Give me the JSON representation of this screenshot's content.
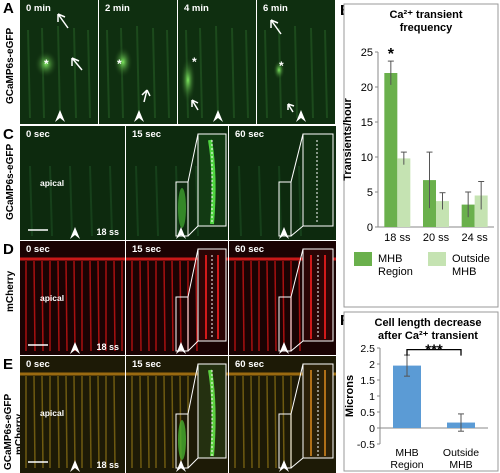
{
  "panels": {
    "A": {
      "label": "A",
      "row_label": "GCaMP6s-eGFP",
      "frames": [
        "0 min",
        "2 min",
        "4 min",
        "6 min"
      ]
    },
    "C": {
      "label": "C",
      "row_label": "GCaMP6s-eGFP",
      "frames": [
        "0 sec",
        "15 sec",
        "60 sec"
      ],
      "apical": "apical",
      "stage": "18 ss"
    },
    "D": {
      "label": "D",
      "row_label": "mCherry",
      "frames": [
        "0 sec",
        "15 sec",
        "60 sec"
      ],
      "apical": "apical",
      "stage": "18 ss"
    },
    "E": {
      "label": "E",
      "row_label_1": "GCaMP6s-eGFP",
      "row_label_2": "mCherry",
      "frames": [
        "0 sec",
        "15 sec",
        "60 sec"
      ],
      "apical": "apical",
      "stage": "18 ss"
    },
    "B": {
      "label": "B"
    },
    "F": {
      "label": "F"
    }
  },
  "chart_data": [
    {
      "type": "bar",
      "title": "Ca²⁺ transient frequency",
      "ylabel": "Transients/hour",
      "categories": [
        "18 ss",
        "20 ss",
        "24 ss"
      ],
      "series": [
        {
          "name": "MHB Region",
          "values": [
            22,
            6.7,
            3.2
          ],
          "errors": [
            1.7,
            4.0,
            1.8
          ]
        },
        {
          "name": "Outside MHB",
          "values": [
            9.8,
            3.7,
            4.5
          ],
          "errors": [
            0.9,
            1.2,
            2.0
          ]
        }
      ],
      "ylim": [
        0,
        25
      ],
      "yticks": [
        0,
        5,
        10,
        15,
        20,
        25
      ],
      "annotation": "*",
      "colors": [
        "#6ab04c",
        "#c5e3b2"
      ]
    },
    {
      "type": "bar",
      "title": "Cell length decrease after Ca²⁺ transient",
      "ylabel": "Microns",
      "categories": [
        "MHB Region",
        "Outside MHB"
      ],
      "values": [
        1.95,
        0.17
      ],
      "errors": [
        0.33,
        0.27
      ],
      "ylim": [
        -0.5,
        2.5
      ],
      "yticks": [
        -0.5,
        0,
        0.5,
        1,
        1.5,
        2,
        2.5
      ],
      "annotation": "***",
      "color": "#5b9bd5"
    }
  ]
}
